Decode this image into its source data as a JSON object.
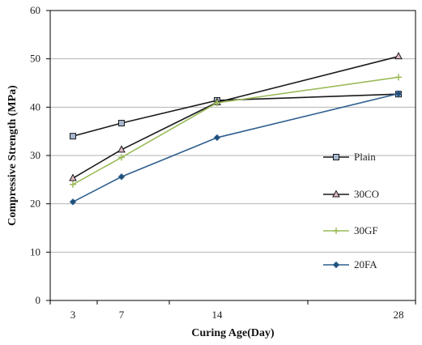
{
  "chart_data": {
    "type": "line",
    "xlabel": "Curing Age(Day)",
    "ylabel": "Compressive Strength (MPa)",
    "x_tick_labels": [
      "3",
      "7",
      "14",
      "28"
    ],
    "ylim": [
      0,
      60
    ],
    "y_ticks": [
      0,
      10,
      20,
      30,
      40,
      50,
      60
    ],
    "grid": "horizontal",
    "legend_position": "right",
    "series": [
      {
        "name": "Plain",
        "color": "#1a1a1a",
        "marker": "square",
        "marker_fill": "#a9b8cf",
        "values": [
          34.0,
          36.7,
          41.4,
          42.7
        ]
      },
      {
        "name": "30CO",
        "color": "#1a1a1a",
        "marker": "triangle",
        "marker_fill": "#e0b8c0",
        "values": [
          25.3,
          31.2,
          41.0,
          50.5
        ]
      },
      {
        "name": "30GF",
        "color": "#9bbb59",
        "marker": "plus",
        "marker_fill": "#9bbb59",
        "values": [
          24.0,
          29.6,
          40.9,
          46.2
        ]
      },
      {
        "name": "20FA",
        "color": "#2f5f8f",
        "marker": "diamond",
        "marker_fill": "#1f4e79",
        "values": [
          20.4,
          25.6,
          33.7,
          42.8
        ]
      }
    ]
  }
}
